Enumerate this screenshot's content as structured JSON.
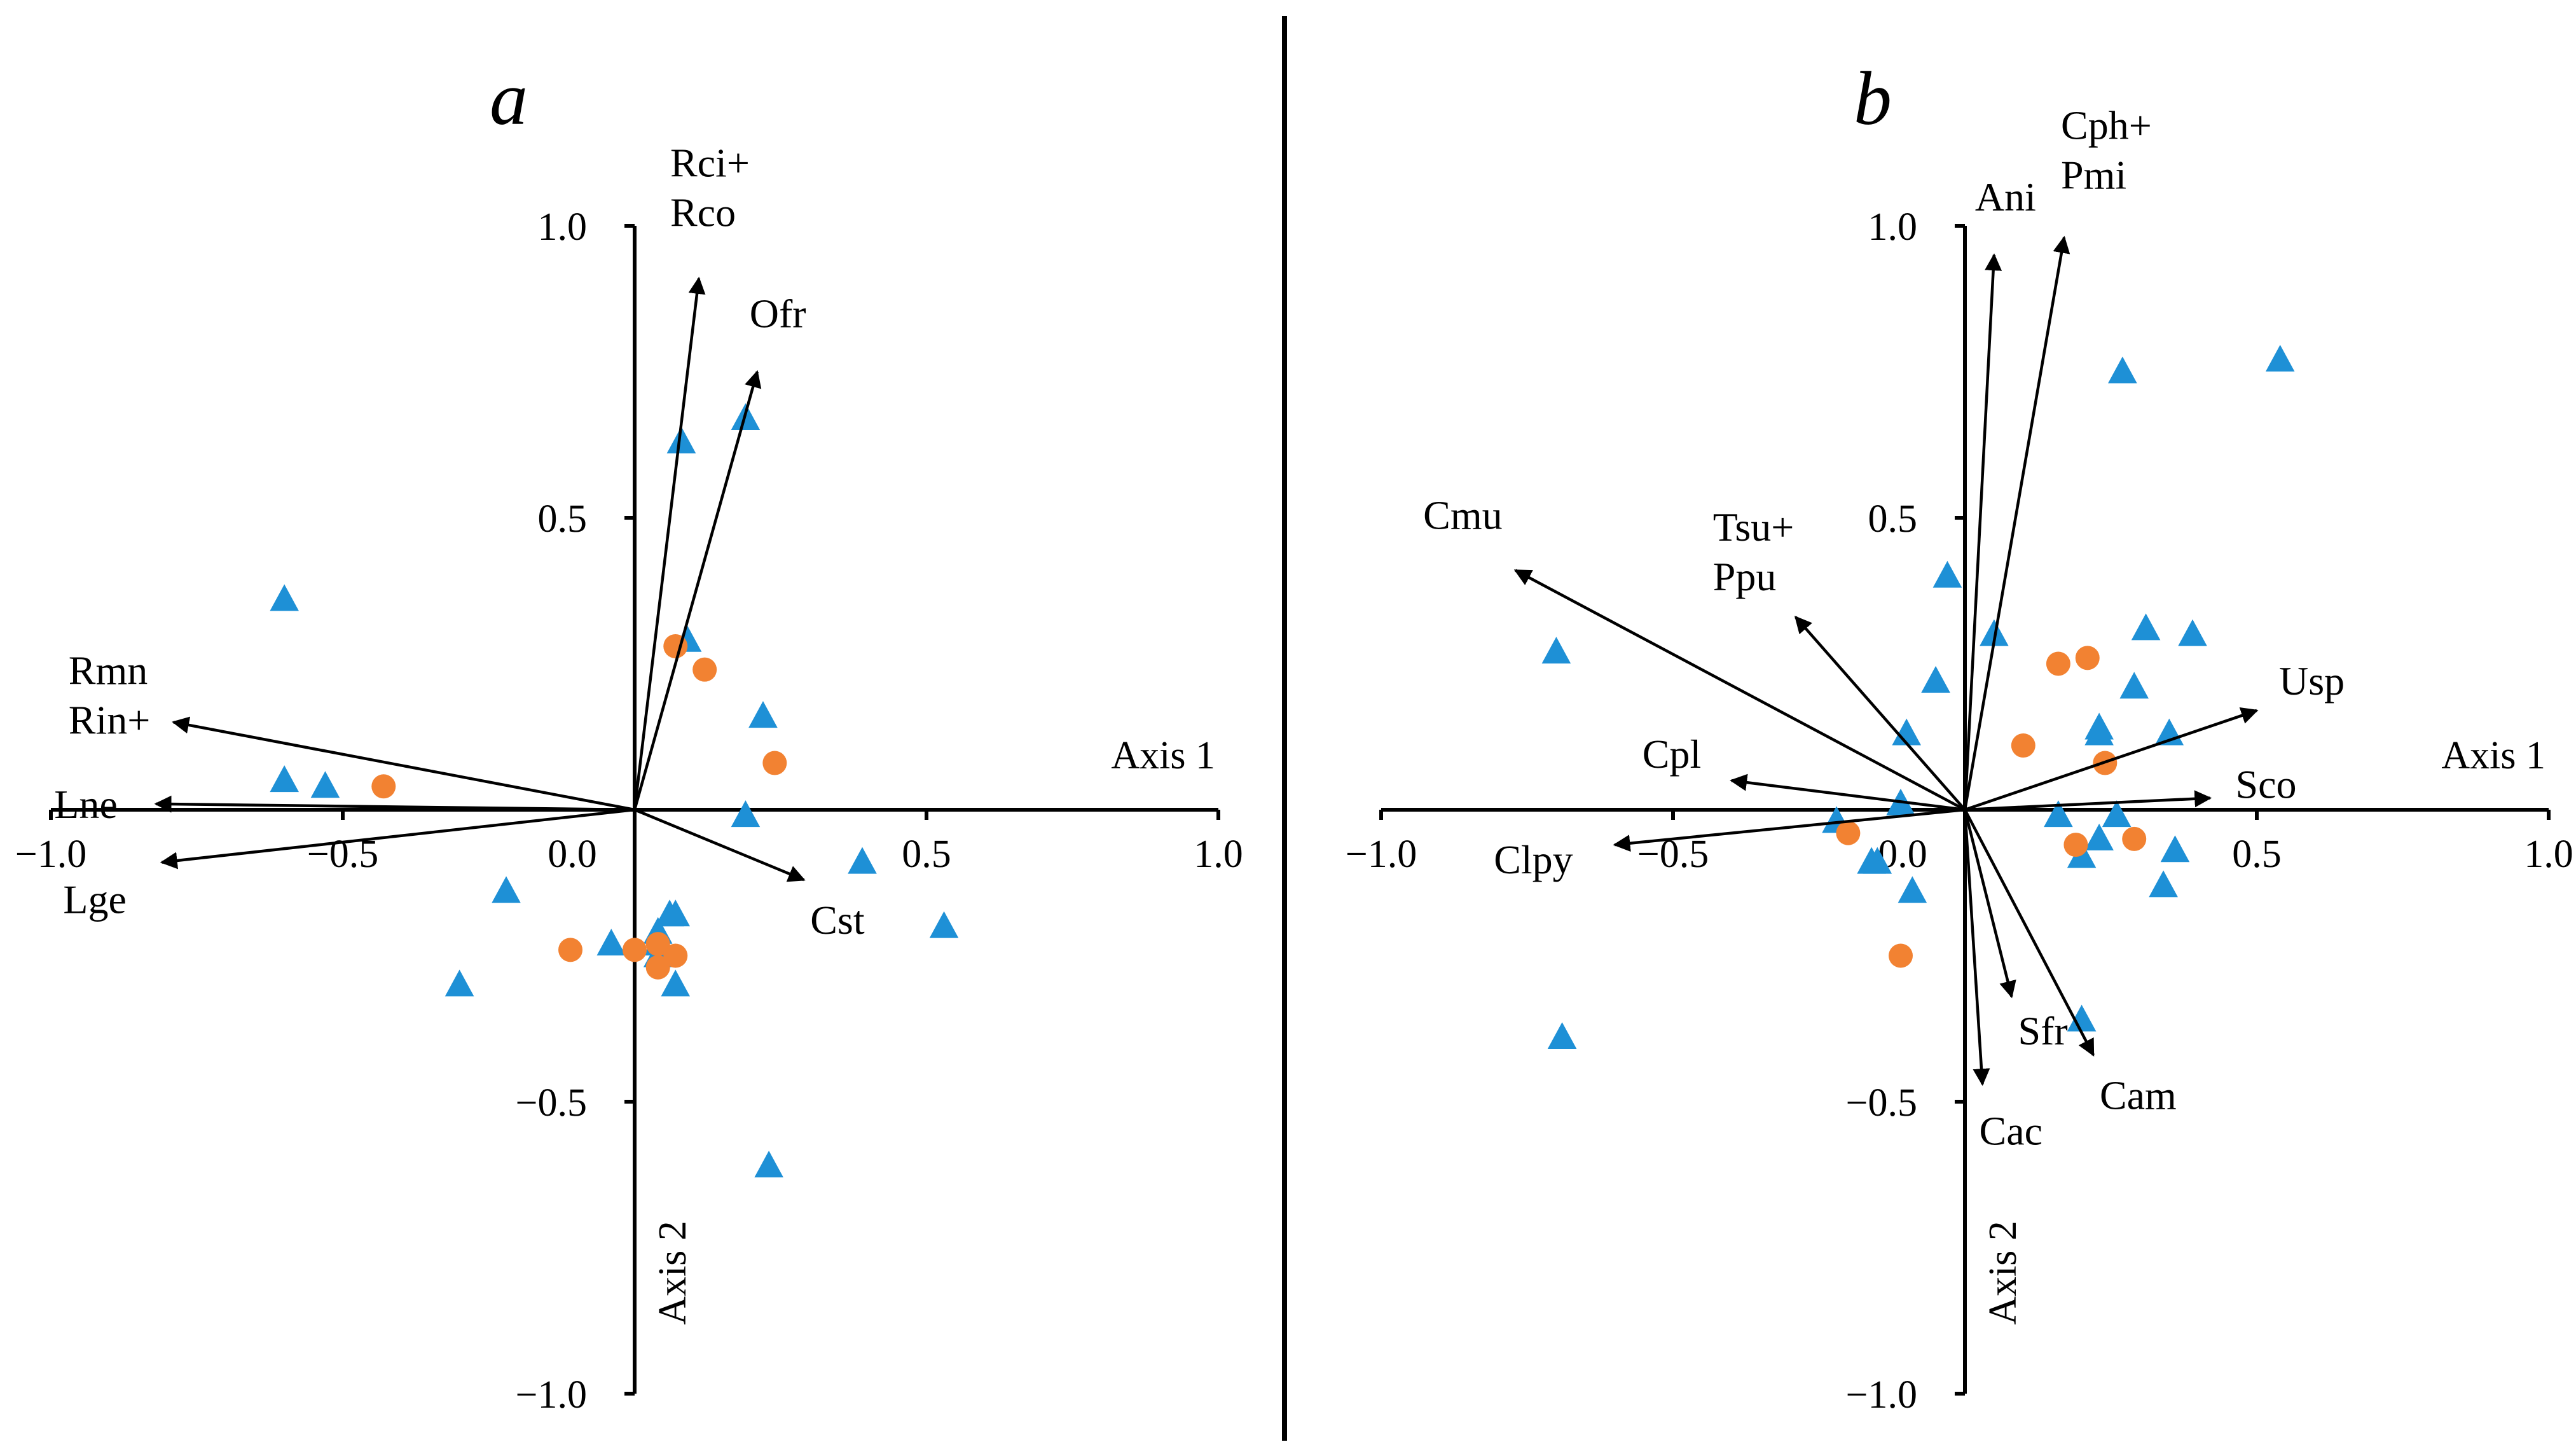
{
  "colors": {
    "triangle": "#1E90D6",
    "circle": "#F28232",
    "ink": "#000000"
  },
  "chart_data": [
    {
      "type": "scatter",
      "panel": "a",
      "x_axis_label": "Axis 1",
      "y_axis_label": "Axis 2",
      "xlim": [
        -1.0,
        1.0
      ],
      "ylim": [
        -1.0,
        1.0
      ],
      "x_ticks": [
        {
          "value": -1.0,
          "label": "−1.0"
        },
        {
          "value": -0.5,
          "label": "−0.5"
        },
        {
          "value": 0.0,
          "label": "0.0"
        },
        {
          "value": 0.5,
          "label": "0.5"
        },
        {
          "value": 1.0,
          "label": "1.0"
        }
      ],
      "y_ticks": [
        {
          "value": 1.0,
          "label": "1.0"
        },
        {
          "value": 0.5,
          "label": "0.5"
        },
        {
          "value": -0.5,
          "label": "−0.5"
        },
        {
          "value": -1.0,
          "label": "−1.0"
        }
      ],
      "vectors": [
        {
          "name": "Rci+ Rco",
          "lines": [
            "Rci+",
            "Rco"
          ],
          "x": 0.11,
          "y": 0.91
        },
        {
          "name": "Ofr",
          "lines": [
            "Ofr"
          ],
          "x": 0.21,
          "y": 0.75
        },
        {
          "name": "Rmn Rin+",
          "lines": [
            "Rmn",
            "Rin+"
          ],
          "x": -0.79,
          "y": 0.15
        },
        {
          "name": "Lne",
          "lines": [
            "Lne"
          ],
          "x": -0.82,
          "y": 0.01
        },
        {
          "name": "Lge",
          "lines": [
            "Lge"
          ],
          "x": -0.81,
          "y": -0.09
        },
        {
          "name": "Cst",
          "lines": [
            "Cst"
          ],
          "x": 0.29,
          "y": -0.12
        }
      ],
      "series": [
        {
          "name": "sites (triangle)",
          "marker": "triangle",
          "points": [
            [
              0.08,
              0.63
            ],
            [
              0.19,
              0.67
            ],
            [
              -0.6,
              0.36
            ],
            [
              0.09,
              0.29
            ],
            [
              0.22,
              0.16
            ],
            [
              -0.6,
              0.05
            ],
            [
              -0.53,
              0.04
            ],
            [
              0.19,
              -0.01
            ],
            [
              0.39,
              -0.09
            ],
            [
              0.53,
              -0.2
            ],
            [
              -0.22,
              -0.14
            ],
            [
              -0.3,
              -0.3
            ],
            [
              0.06,
              -0.18
            ],
            [
              0.04,
              -0.21
            ],
            [
              -0.04,
              -0.23
            ],
            [
              0.04,
              -0.23
            ],
            [
              0.07,
              -0.18
            ],
            [
              0.04,
              -0.25
            ],
            [
              0.07,
              -0.3
            ],
            [
              0.23,
              -0.61
            ]
          ]
        },
        {
          "name": "sites (circle)",
          "marker": "circle",
          "points": [
            [
              0.07,
              0.28
            ],
            [
              0.12,
              0.24
            ],
            [
              0.24,
              0.08
            ],
            [
              -0.43,
              0.04
            ],
            [
              -0.11,
              -0.24
            ],
            [
              0.0,
              -0.24
            ],
            [
              0.04,
              -0.23
            ],
            [
              0.07,
              -0.25
            ],
            [
              0.04,
              -0.27
            ]
          ]
        }
      ]
    },
    {
      "type": "scatter",
      "panel": "b",
      "x_axis_label": "Axis 1",
      "y_axis_label": "Axis 2",
      "xlim": [
        -1.0,
        1.0
      ],
      "ylim": [
        -1.0,
        1.0
      ],
      "x_ticks": [
        {
          "value": -1.0,
          "label": "−1.0"
        },
        {
          "value": -0.5,
          "label": "−0.5"
        },
        {
          "value": 0.0,
          "label": "0.0"
        },
        {
          "value": 0.5,
          "label": "0.5"
        },
        {
          "value": 1.0,
          "label": "1.0"
        }
      ],
      "y_ticks": [
        {
          "value": 1.0,
          "label": "1.0"
        },
        {
          "value": 0.5,
          "label": "0.5"
        },
        {
          "value": -0.5,
          "label": "−0.5"
        },
        {
          "value": -1.0,
          "label": "−1.0"
        }
      ],
      "vectors": [
        {
          "name": "Ani",
          "lines": [
            "Ani"
          ],
          "x": 0.05,
          "y": 0.95
        },
        {
          "name": "Cph+ Pmi",
          "lines": [
            "Cph+",
            "Pmi"
          ],
          "x": 0.17,
          "y": 0.98
        },
        {
          "name": "Cmu",
          "lines": [
            "Cmu"
          ],
          "x": -0.77,
          "y": 0.41
        },
        {
          "name": "Tsu+ Ppu",
          "lines": [
            "Tsu+",
            "Ppu"
          ],
          "x": -0.29,
          "y": 0.33
        },
        {
          "name": "Usp",
          "lines": [
            "Usp"
          ],
          "x": 0.5,
          "y": 0.17
        },
        {
          "name": "Cpl",
          "lines": [
            "Cpl"
          ],
          "x": -0.4,
          "y": 0.05
        },
        {
          "name": "Sco",
          "lines": [
            "Sco"
          ],
          "x": 0.42,
          "y": 0.02
        },
        {
          "name": "Clpy",
          "lines": [
            "Clpy"
          ],
          "x": -0.6,
          "y": -0.06
        },
        {
          "name": "Sfr",
          "lines": [
            "Sfr"
          ],
          "x": 0.08,
          "y": -0.32
        },
        {
          "name": "Cam",
          "lines": [
            "Cam"
          ],
          "x": 0.22,
          "y": -0.42
        },
        {
          "name": "Cac",
          "lines": [
            "Cac"
          ],
          "x": 0.03,
          "y": -0.47
        }
      ],
      "series": [
        {
          "name": "sites (triangle)",
          "marker": "triangle",
          "points": [
            [
              0.54,
              0.77
            ],
            [
              0.27,
              0.75
            ],
            [
              -0.03,
              0.4
            ],
            [
              0.05,
              0.3
            ],
            [
              0.31,
              0.31
            ],
            [
              0.39,
              0.3
            ],
            [
              -0.05,
              0.22
            ],
            [
              0.29,
              0.21
            ],
            [
              0.23,
              0.13
            ],
            [
              0.35,
              0.13
            ],
            [
              -0.1,
              0.13
            ],
            [
              -0.7,
              0.27
            ],
            [
              0.23,
              0.14
            ],
            [
              -0.11,
              0.01
            ],
            [
              0.16,
              -0.01
            ],
            [
              0.26,
              -0.01
            ],
            [
              -0.22,
              -0.02
            ],
            [
              0.23,
              -0.05
            ],
            [
              0.2,
              -0.08
            ],
            [
              0.36,
              -0.07
            ],
            [
              -0.15,
              -0.09
            ],
            [
              -0.16,
              -0.09
            ],
            [
              -0.09,
              -0.14
            ],
            [
              0.34,
              -0.13
            ],
            [
              0.2,
              -0.36
            ],
            [
              -0.69,
              -0.39
            ]
          ]
        },
        {
          "name": "sites (circle)",
          "marker": "circle",
          "points": [
            [
              0.16,
              0.25
            ],
            [
              0.21,
              0.26
            ],
            [
              0.1,
              0.11
            ],
            [
              0.24,
              0.08
            ],
            [
              -0.2,
              -0.04
            ],
            [
              0.19,
              -0.06
            ],
            [
              0.29,
              -0.05
            ],
            [
              -0.11,
              -0.25
            ]
          ]
        }
      ]
    }
  ],
  "panels": [
    {
      "letter": "a"
    },
    {
      "letter": "b"
    }
  ]
}
